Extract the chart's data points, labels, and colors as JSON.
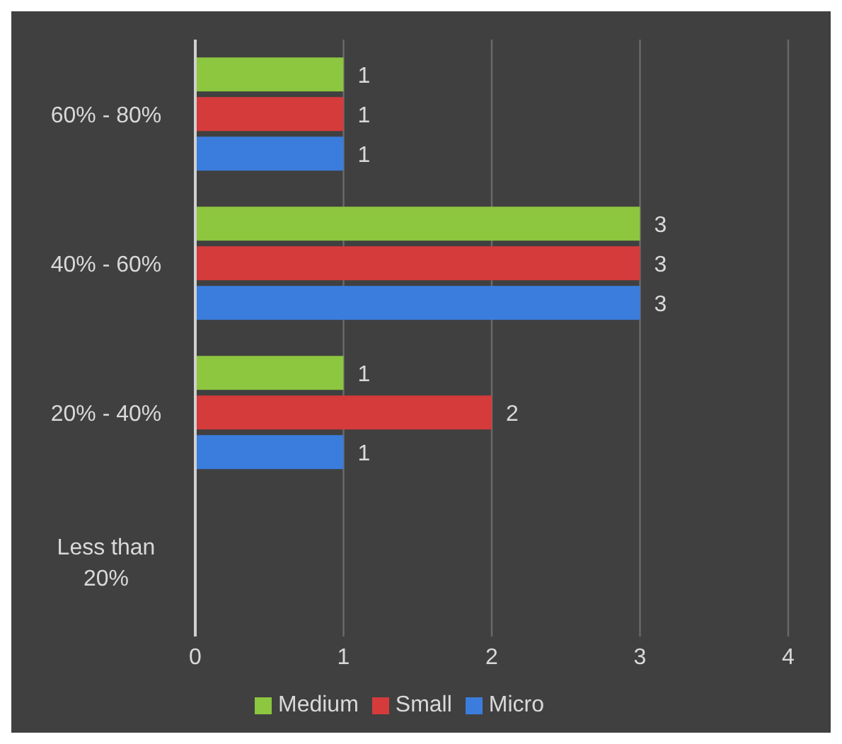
{
  "chart_data": {
    "type": "bar",
    "orientation": "horizontal",
    "categories": [
      "60% - 80%",
      "40% - 60%",
      "20% - 40%",
      "Less than 20%"
    ],
    "series": [
      {
        "name": "Medium",
        "color": "#8dc63f",
        "values": [
          1,
          3,
          1,
          null
        ]
      },
      {
        "name": "Small",
        "color": "#d63b3b",
        "values": [
          1,
          3,
          2,
          null
        ]
      },
      {
        "name": "Micro",
        "color": "#3b7ddd",
        "values": [
          1,
          3,
          1,
          null
        ]
      }
    ],
    "xlim": [
      0,
      4
    ],
    "xticks": [
      0,
      1,
      2,
      3,
      4
    ],
    "grid": "x",
    "legend": "bottom",
    "data_labels": true
  }
}
